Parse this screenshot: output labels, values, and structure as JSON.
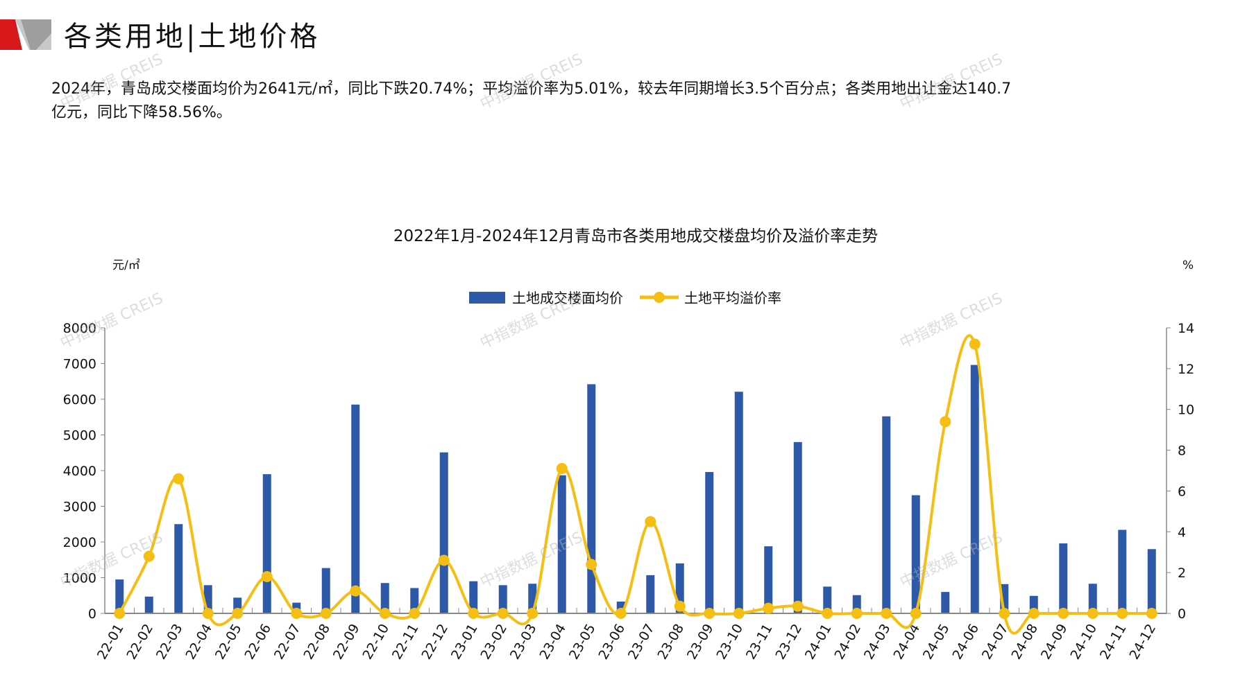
{
  "header": {
    "title": "各类用地|土地价格"
  },
  "summary": {
    "line1": "2024年，青岛成交楼面均价为2641元/㎡，同比下跌20.74%；平均溢价率为5.01%，较去年同期增长3.5个百分点；各类用地出让金达140.7",
    "line2": "亿元，同比下降58.56%。"
  },
  "watermark": "中指数据 CREIS",
  "colors": {
    "bar": "#2E59A8",
    "line": "#F5BE12",
    "logo_red": "#D7191C",
    "logo_gray": "#A6A6A6"
  },
  "chart_data": {
    "type": "bar+line",
    "title": "2022年1月-2024年12月青岛市各类用地成交楼盘均价及溢价率走势",
    "ylabel_left": "元/㎡",
    "ylabel_right": "%",
    "ylim_left": [
      0,
      8000
    ],
    "ylim_right": [
      0,
      14
    ],
    "yticks_left": [
      0,
      1000,
      2000,
      3000,
      4000,
      5000,
      6000,
      7000,
      8000
    ],
    "yticks_right": [
      0,
      2,
      4,
      6,
      8,
      10,
      12,
      14
    ],
    "legend_position": "top",
    "grid": false,
    "categories": [
      "22-01",
      "22-02",
      "22-03",
      "22-04",
      "22-05",
      "22-06",
      "22-07",
      "22-08",
      "22-09",
      "22-10",
      "22-11",
      "22-12",
      "23-01",
      "23-02",
      "23-03",
      "23-04",
      "23-05",
      "23-06",
      "23-07",
      "23-08",
      "23-09",
      "23-10",
      "23-11",
      "23-12",
      "24-01",
      "24-02",
      "24-03",
      "24-04",
      "24-05",
      "24-06",
      "24-07",
      "24-08",
      "24-09",
      "24-10",
      "24-11",
      "24-12"
    ],
    "series": [
      {
        "name": "土地成交楼面均价",
        "type": "bar",
        "axis": "left",
        "values": [
          950,
          470,
          2500,
          790,
          440,
          3900,
          300,
          1270,
          5850,
          850,
          710,
          4510,
          900,
          790,
          830,
          3870,
          6420,
          330,
          1070,
          1400,
          3960,
          6210,
          1880,
          4800,
          750,
          510,
          5520,
          3310,
          600,
          6960,
          820,
          490,
          1960,
          830,
          2340,
          1800
        ]
      },
      {
        "name": "土地平均溢价率",
        "type": "line",
        "axis": "right",
        "values": [
          0,
          2.8,
          6.6,
          0,
          0,
          1.8,
          0,
          0,
          1.1,
          0,
          0,
          2.6,
          0,
          0,
          0,
          7.1,
          2.4,
          0,
          4.5,
          0.35,
          0,
          0,
          0.25,
          0.35,
          0,
          0,
          0,
          0,
          9.4,
          13.2,
          0,
          0,
          0,
          0,
          0,
          0
        ]
      }
    ]
  }
}
